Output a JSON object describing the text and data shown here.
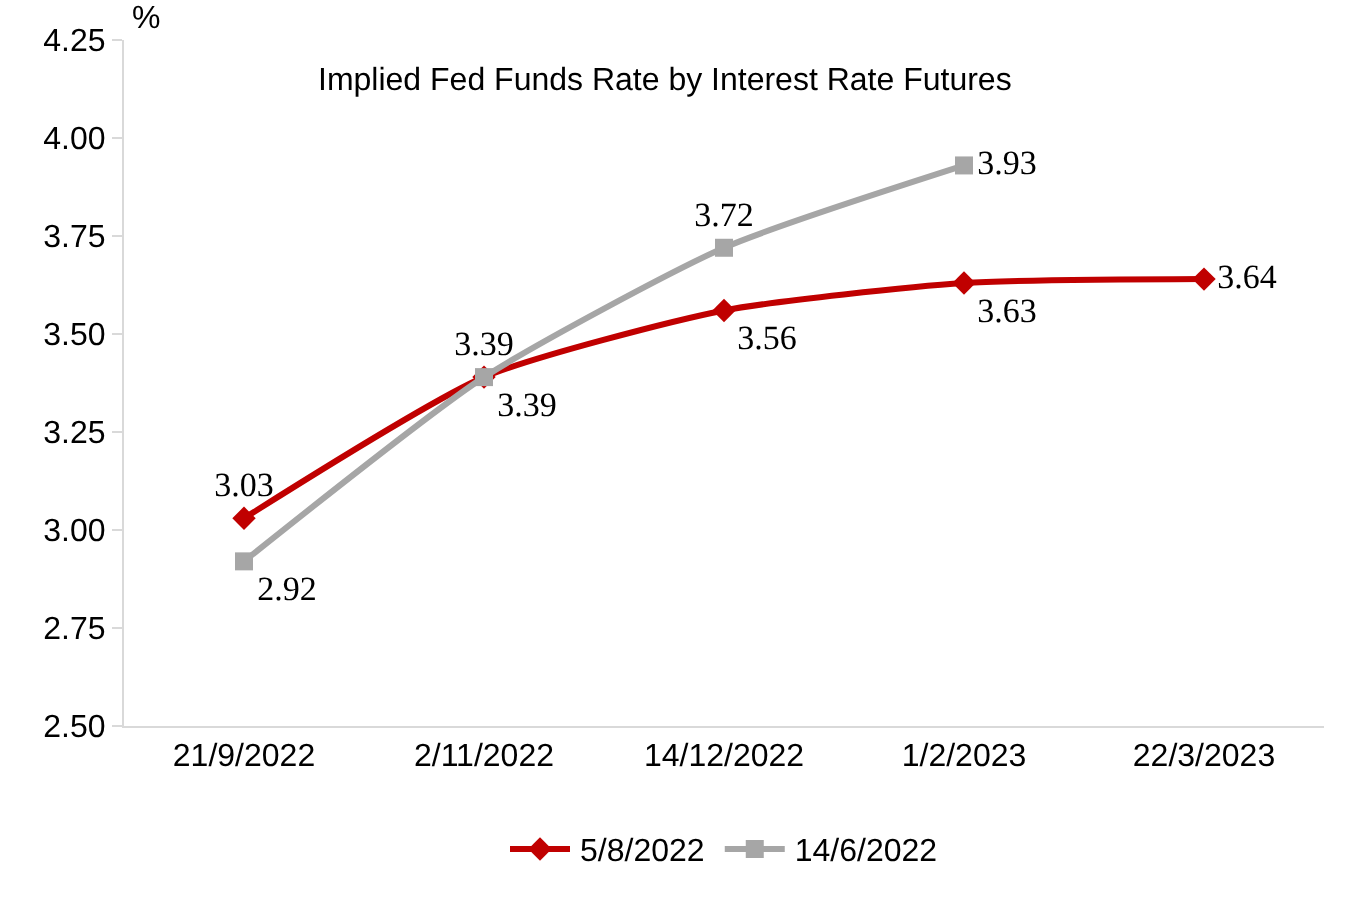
{
  "chart_data": {
    "type": "line",
    "title": "Implied Fed Funds Rate by Interest Rate Futures",
    "ylabel": "%",
    "categories": [
      "21/9/2022",
      "2/11/2022",
      "14/12/2022",
      "1/2/2023",
      "22/3/2023"
    ],
    "series": [
      {
        "name": "5/8/2022",
        "color": "#c00000",
        "marker": "diamond",
        "values": [
          3.03,
          3.39,
          3.56,
          3.63,
          3.64
        ]
      },
      {
        "name": "14/6/2022",
        "color": "#a6a6a6",
        "marker": "square",
        "values": [
          2.92,
          3.39,
          3.72,
          3.93,
          null
        ]
      }
    ],
    "ylim": [
      2.5,
      4.25
    ],
    "yticks": [
      {
        "value": 2.5,
        "label": "2.50"
      },
      {
        "value": 2.75,
        "label": "2.75"
      },
      {
        "value": 3,
        "label": "3.00"
      },
      {
        "value": 3.25,
        "label": "3.25"
      },
      {
        "value": 3.5,
        "label": "3.50"
      },
      {
        "value": 3.75,
        "label": "3.75"
      },
      {
        "value": 4,
        "label": "4.00"
      },
      {
        "value": 4.25,
        "label": "4.25"
      }
    ],
    "grid": false,
    "legend": "bottom",
    "data_labels": true,
    "line_style": "solid"
  }
}
